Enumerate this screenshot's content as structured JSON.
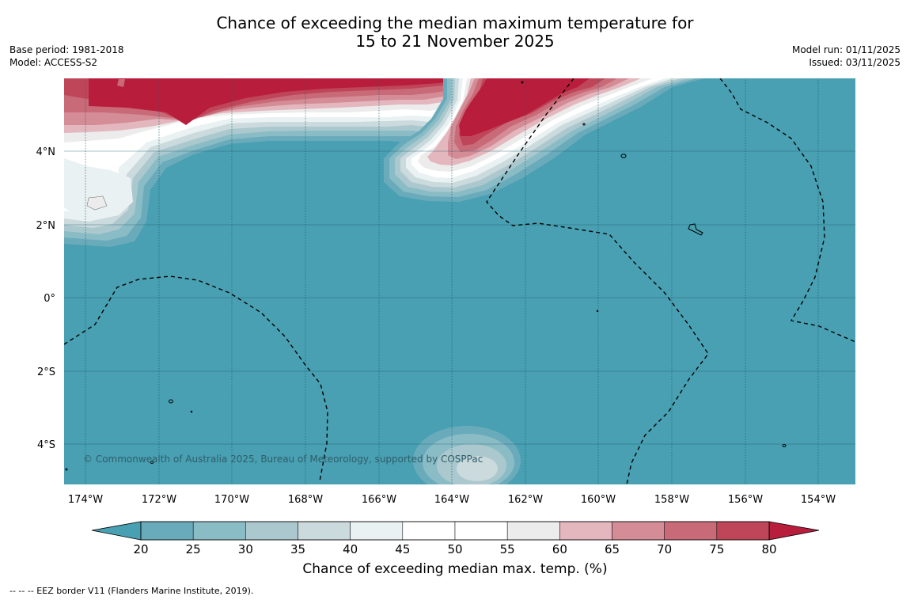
{
  "title": {
    "line1": "Chance of exceeding the median maximum temperature for",
    "line2": "15 to 21 November 2025"
  },
  "meta": {
    "base_period": "Base period: 1981-2018",
    "model": "Model: ACCESS-S2",
    "model_run": "Model run: 01/11/2025",
    "issued": "Issued: 03/11/2025"
  },
  "map": {
    "copyright": "© Commonwealth of Australia 2025, Bureau of Meteorology, supported by COSPPac",
    "lon_labels": [
      "174°W",
      "172°W",
      "170°W",
      "168°W",
      "166°W",
      "164°W",
      "162°W",
      "160°W",
      "158°W",
      "156°W",
      "154°W"
    ],
    "lat_labels": [
      "4°N",
      "2°N",
      "0°",
      "2°S",
      "4°S"
    ],
    "colors": {
      "ocean_low": "#48a0b2",
      "high": "#b81e3c"
    }
  },
  "colorbar": {
    "label": "Chance of exceeding median max. temp. (%)",
    "ticks": [
      "20",
      "25",
      "30",
      "35",
      "40",
      "45",
      "50",
      "55",
      "60",
      "65",
      "70",
      "75",
      "80"
    ],
    "colors": [
      "#48a0b2",
      "#6aabbb",
      "#8abcc6",
      "#aac8ce",
      "#cbdadd",
      "#e9f1f2",
      "#ffffff",
      "#ffffff",
      "#ececed",
      "#e3b7bd",
      "#d48c96",
      "#c96a78",
      "#bf4659",
      "#b81e3c"
    ]
  },
  "footer": "--  --  -- EEZ border V11 (Flanders Marine Institute, 2019)."
}
